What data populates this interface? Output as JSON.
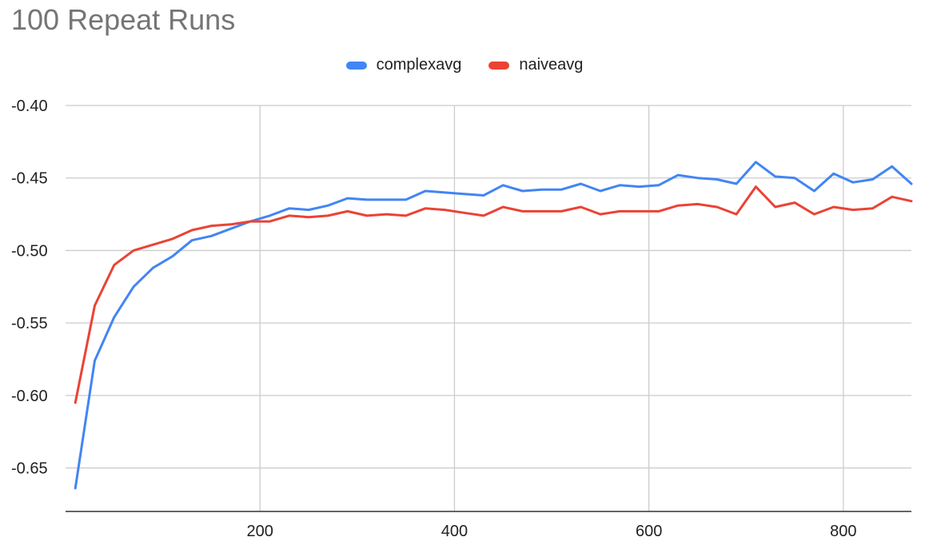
{
  "chart_data": {
    "type": "line",
    "title": "100 Repeat Runs",
    "xlabel": "",
    "ylabel": "",
    "xlim": [
      0,
      870
    ],
    "ylim": [
      -0.68,
      -0.4
    ],
    "x_ticks": [
      200,
      400,
      600,
      800
    ],
    "x_tick_labels": [
      "200",
      "400",
      "600",
      "800"
    ],
    "y_ticks": [
      -0.4,
      -0.45,
      -0.5,
      -0.55,
      -0.6,
      -0.65
    ],
    "y_tick_labels": [
      "-0.40",
      "-0.45",
      "-0.50",
      "-0.55",
      "-0.60",
      "-0.65"
    ],
    "grid": true,
    "legend_position": "top-center",
    "x": [
      10,
      30,
      50,
      70,
      90,
      110,
      130,
      150,
      170,
      190,
      210,
      230,
      250,
      270,
      290,
      310,
      330,
      350,
      370,
      390,
      410,
      430,
      450,
      470,
      490,
      510,
      530,
      550,
      570,
      590,
      610,
      630,
      650,
      670,
      690,
      710,
      730,
      750,
      770,
      790,
      810,
      830,
      850,
      870
    ],
    "series": [
      {
        "name": "complexavg",
        "color": "#4285f4",
        "values": [
          -0.664,
          -0.576,
          -0.546,
          -0.525,
          -0.512,
          -0.504,
          -0.493,
          -0.49,
          -0.485,
          -0.48,
          -0.476,
          -0.471,
          -0.472,
          -0.469,
          -0.464,
          -0.465,
          -0.465,
          -0.465,
          -0.459,
          -0.46,
          -0.461,
          -0.462,
          -0.455,
          -0.459,
          -0.458,
          -0.458,
          -0.454,
          -0.459,
          -0.455,
          -0.456,
          -0.455,
          -0.448,
          -0.45,
          -0.451,
          -0.454,
          -0.439,
          -0.449,
          -0.45,
          -0.459,
          -0.447,
          -0.453,
          -0.451,
          -0.442,
          -0.454
        ]
      },
      {
        "name": "naiveavg",
        "color": "#ea4335",
        "values": [
          -0.605,
          -0.538,
          -0.51,
          -0.5,
          -0.496,
          -0.492,
          -0.486,
          -0.483,
          -0.482,
          -0.48,
          -0.48,
          -0.476,
          -0.477,
          -0.476,
          -0.473,
          -0.476,
          -0.475,
          -0.476,
          -0.471,
          -0.472,
          -0.474,
          -0.476,
          -0.47,
          -0.473,
          -0.473,
          -0.473,
          -0.47,
          -0.475,
          -0.473,
          -0.473,
          -0.473,
          -0.469,
          -0.468,
          -0.47,
          -0.475,
          -0.456,
          -0.47,
          -0.467,
          -0.475,
          -0.47,
          -0.472,
          -0.471,
          -0.463,
          -0.466
        ]
      }
    ]
  }
}
